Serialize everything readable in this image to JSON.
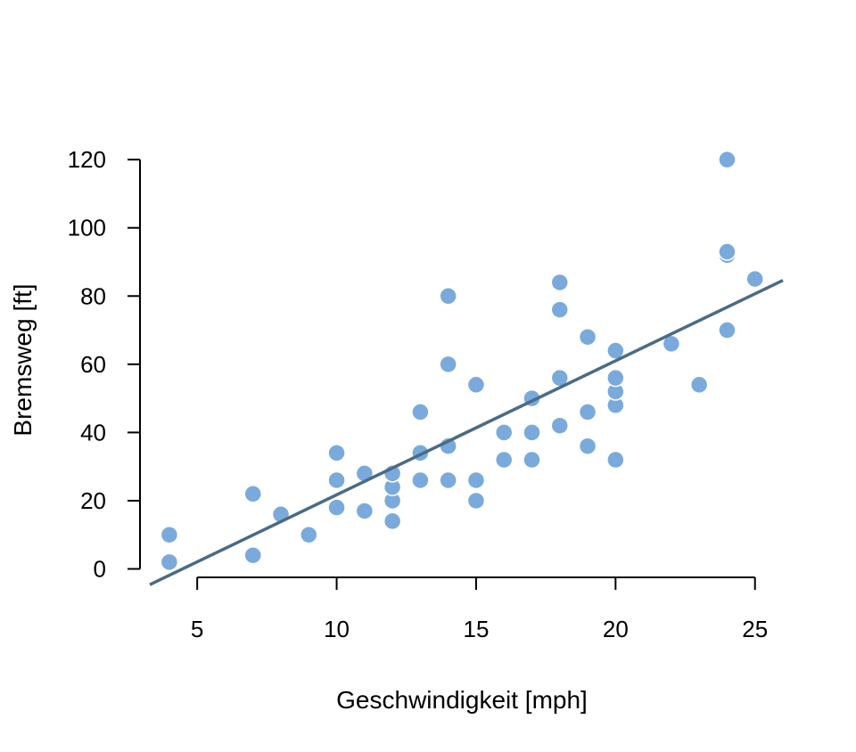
{
  "chart_data": {
    "type": "scatter",
    "title": "",
    "xlabel": "Geschwindigkeit [mph]",
    "ylabel": "Bremsweg [ft]",
    "xlim": [
      3.3,
      26
    ],
    "ylim": [
      -3,
      125
    ],
    "x_ticks": [
      5,
      10,
      15,
      20,
      25
    ],
    "y_ticks": [
      0,
      20,
      40,
      60,
      80,
      100,
      120
    ],
    "x_tick_labels": [
      "5",
      "10",
      "15",
      "20",
      "25"
    ],
    "y_tick_labels": [
      "0",
      "20",
      "40",
      "60",
      "80",
      "100",
      "120"
    ],
    "grid": false,
    "legend": "none",
    "colors": {
      "points": "#7aaadb",
      "point_edge": "#ffffff",
      "fit_line": "#4a6b85"
    },
    "series": [
      {
        "x": [
          4,
          4,
          7,
          7,
          8,
          9,
          10,
          10,
          10,
          11,
          11,
          12,
          12,
          12,
          12,
          13,
          13,
          13,
          13,
          14,
          14,
          14,
          14,
          15,
          15,
          15,
          16,
          16,
          17,
          17,
          17,
          18,
          18,
          18,
          18,
          19,
          19,
          19,
          20,
          20,
          20,
          20,
          20,
          22,
          23,
          24,
          24,
          24,
          24,
          25
        ],
        "y": [
          2,
          10,
          4,
          22,
          16,
          10,
          18,
          26,
          34,
          17,
          28,
          14,
          20,
          24,
          28,
          26,
          34,
          34,
          46,
          26,
          36,
          60,
          80,
          20,
          26,
          54,
          32,
          40,
          32,
          40,
          50,
          42,
          56,
          76,
          84,
          36,
          46,
          68,
          32,
          48,
          52,
          56,
          64,
          66,
          54,
          70,
          92,
          93,
          120,
          85
        ]
      }
    ],
    "fit_line": {
      "intercept": -17.58,
      "slope": 3.93,
      "x_range": [
        3.3,
        26
      ]
    }
  }
}
